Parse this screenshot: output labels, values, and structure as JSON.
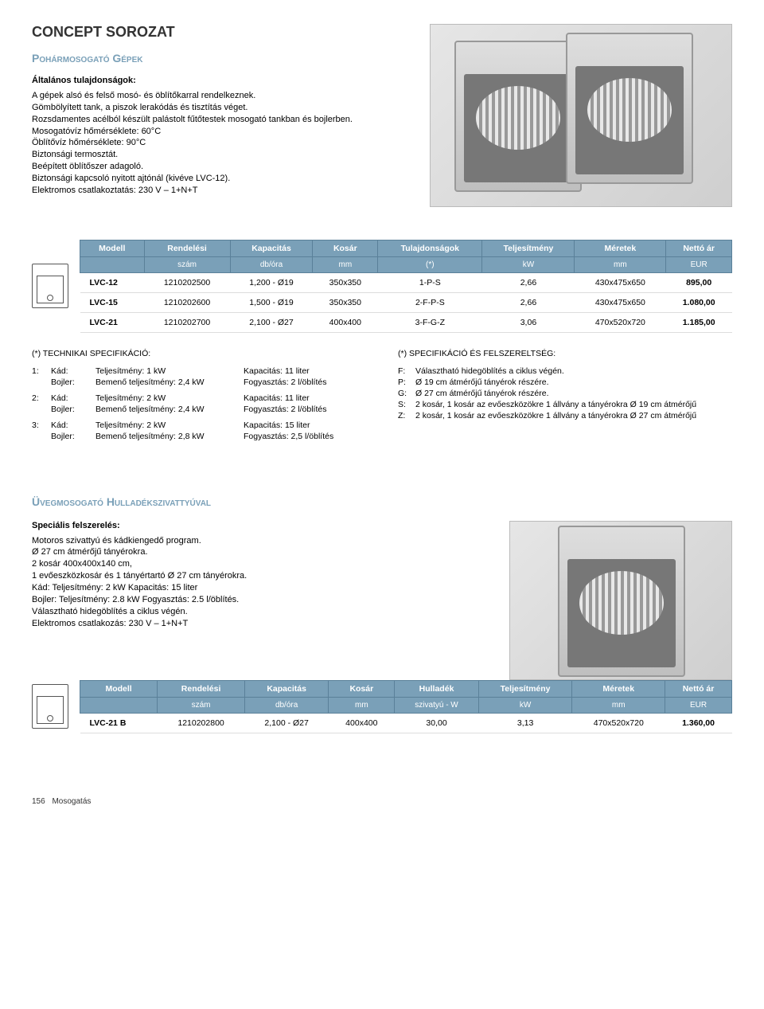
{
  "header": {
    "series": "CONCEPT SOROZAT",
    "section": "Pohármosogató Gépek",
    "general_label": "Általános tulajdonságok:",
    "desc": "A gépek alsó és felső mosó- és öblítőkarral rendelkeznek.\nGömbölyített tank, a piszok lerakódás és tisztítás véget.\nRozsdamentes acélból készült palástolt fűtőtestek mosogató tankban és bojlerben.\nMosogatóvíz hőmérséklete: 60°C\nÖblítővíz hőmérséklete: 90°C\nBiztonsági termosztát.\nBeépített öblítőszer adagoló.\nBiztonsági kapcsoló nyitott ajtónál (kivéve LVC-12).\nElektromos csatlakoztatás: 230 V – 1+N+T"
  },
  "table1": {
    "headers": {
      "modell": "Modell",
      "rendelesi": "Rendelési",
      "kapacitas": "Kapacitás",
      "kosar": "Kosár",
      "tulaj": "Tulajdonságok",
      "telj": "Teljesítmény",
      "meretek": "Méretek",
      "netto": "Nettó ár",
      "szam": "szám",
      "dbora": "db/óra",
      "mm": "mm",
      "star": "(*)",
      "kw": "kW",
      "mm2": "mm",
      "eur": "EUR"
    },
    "rows": [
      {
        "model": "LVC-12",
        "ord": "1210202500",
        "cap": "1,200 - Ø19",
        "kosar": "350x350",
        "tul": "1-P-S",
        "telj": "2,66",
        "mer": "430x475x650",
        "price": "895,00"
      },
      {
        "model": "LVC-15",
        "ord": "1210202600",
        "cap": "1,500 - Ø19",
        "kosar": "350x350",
        "tul": "2-F-P-S",
        "telj": "2,66",
        "mer": "430x475x650",
        "price": "1.080,00"
      },
      {
        "model": "LVC-21",
        "ord": "1210202700",
        "cap": "2,100 - Ø27",
        "kosar": "400x400",
        "tul": "3-F-G-Z",
        "telj": "3,06",
        "mer": "470x520x720",
        "price": "1.185,00"
      }
    ]
  },
  "spec_left": {
    "title": "(*) TECHNIKAI SPECIFIKÁCIÓ:",
    "groups": [
      {
        "n": "1:",
        "lines": [
          {
            "k": "Kád:",
            "a": "Teljesítmény: 1 kW",
            "b": "Kapacitás: 11 liter"
          },
          {
            "k": "Bojler:",
            "a": "Bemenő teljesítmény: 2,4 kW",
            "b": "Fogyasztás: 2 l/öblítés"
          }
        ]
      },
      {
        "n": "2:",
        "lines": [
          {
            "k": "Kád:",
            "a": "Teljesítmény: 2 kW",
            "b": "Kapacitás: 11 liter"
          },
          {
            "k": "Bojler:",
            "a": "Bemenő teljesítmény: 2,4 kW",
            "b": "Fogyasztás: 2 l/öblítés"
          }
        ]
      },
      {
        "n": "3:",
        "lines": [
          {
            "k": "Kád:",
            "a": "Teljesítmény: 2 kW",
            "b": "Kapacitás: 15 liter"
          },
          {
            "k": "Bojler:",
            "a": "Bemenő teljesítmény: 2,8 kW",
            "b": "Fogyasztás: 2,5 l/öblítés"
          }
        ]
      }
    ]
  },
  "spec_right": {
    "title": "(*) SPECIFIKÁCIÓ ÉS FELSZERELTSÉG:",
    "items": [
      {
        "k": "F:",
        "v": "Választható hidegöblítés a ciklus végén."
      },
      {
        "k": "P:",
        "v": "Ø 19 cm átmérőjű tányérok részére."
      },
      {
        "k": "G:",
        "v": "Ø 27 cm átmérőjű tányérok részére."
      },
      {
        "k": "S:",
        "v": "2 kosár, 1 kosár az evőeszközökre 1 állvány a tányérokra Ø 19 cm átmérőjű"
      },
      {
        "k": "Z:",
        "v": "2 kosár, 1 kosár az evőeszközökre 1 állvány a tányérokra Ø 27 cm átmérőjű"
      }
    ]
  },
  "section2": {
    "heading": "Üvegmosogató Hulladékszivattyúval",
    "sub": "Speciális felszerelés:",
    "desc": "Motoros szivattyú és kádkiengedő program.\nØ 27 cm átmérőjű tányérokra.\n2 kosár 400x400x140 cm,\n1 evőeszközkosár és 1 tányértartó Ø 27 cm tányérokra.\nKád:        Teljesítmény: 2 kW     Kapacitás: 15 liter\nBojler:     Teljesítmény: 2.8 kW  Fogyasztás: 2.5 l/öblítés.\nVálasztható hidegöblítés a ciklus végén.\nElektromos csatlakozás: 230 V – 1+N+T"
  },
  "table2": {
    "headers": {
      "modell": "Modell",
      "rendelesi": "Rendelési",
      "kapacitas": "Kapacitás",
      "kosar": "Kosár",
      "hulladek": "Hulladék",
      "telj": "Teljesítmény",
      "meretek": "Méretek",
      "netto": "Nettó ár",
      "szam": "szám",
      "dbora": "db/óra",
      "mm": "mm",
      "sziv": "szivatyú - W",
      "kw": "kW",
      "mm2": "mm",
      "eur": "EUR"
    },
    "row": {
      "model": "LVC-21 B",
      "ord": "1210202800",
      "cap": "2,100 - Ø27",
      "kosar": "400x400",
      "hull": "30,00",
      "telj": "3,13",
      "mer": "470x520x720",
      "price": "1.360,00"
    }
  },
  "footer": {
    "page": "156",
    "label": "Mosogatás"
  }
}
